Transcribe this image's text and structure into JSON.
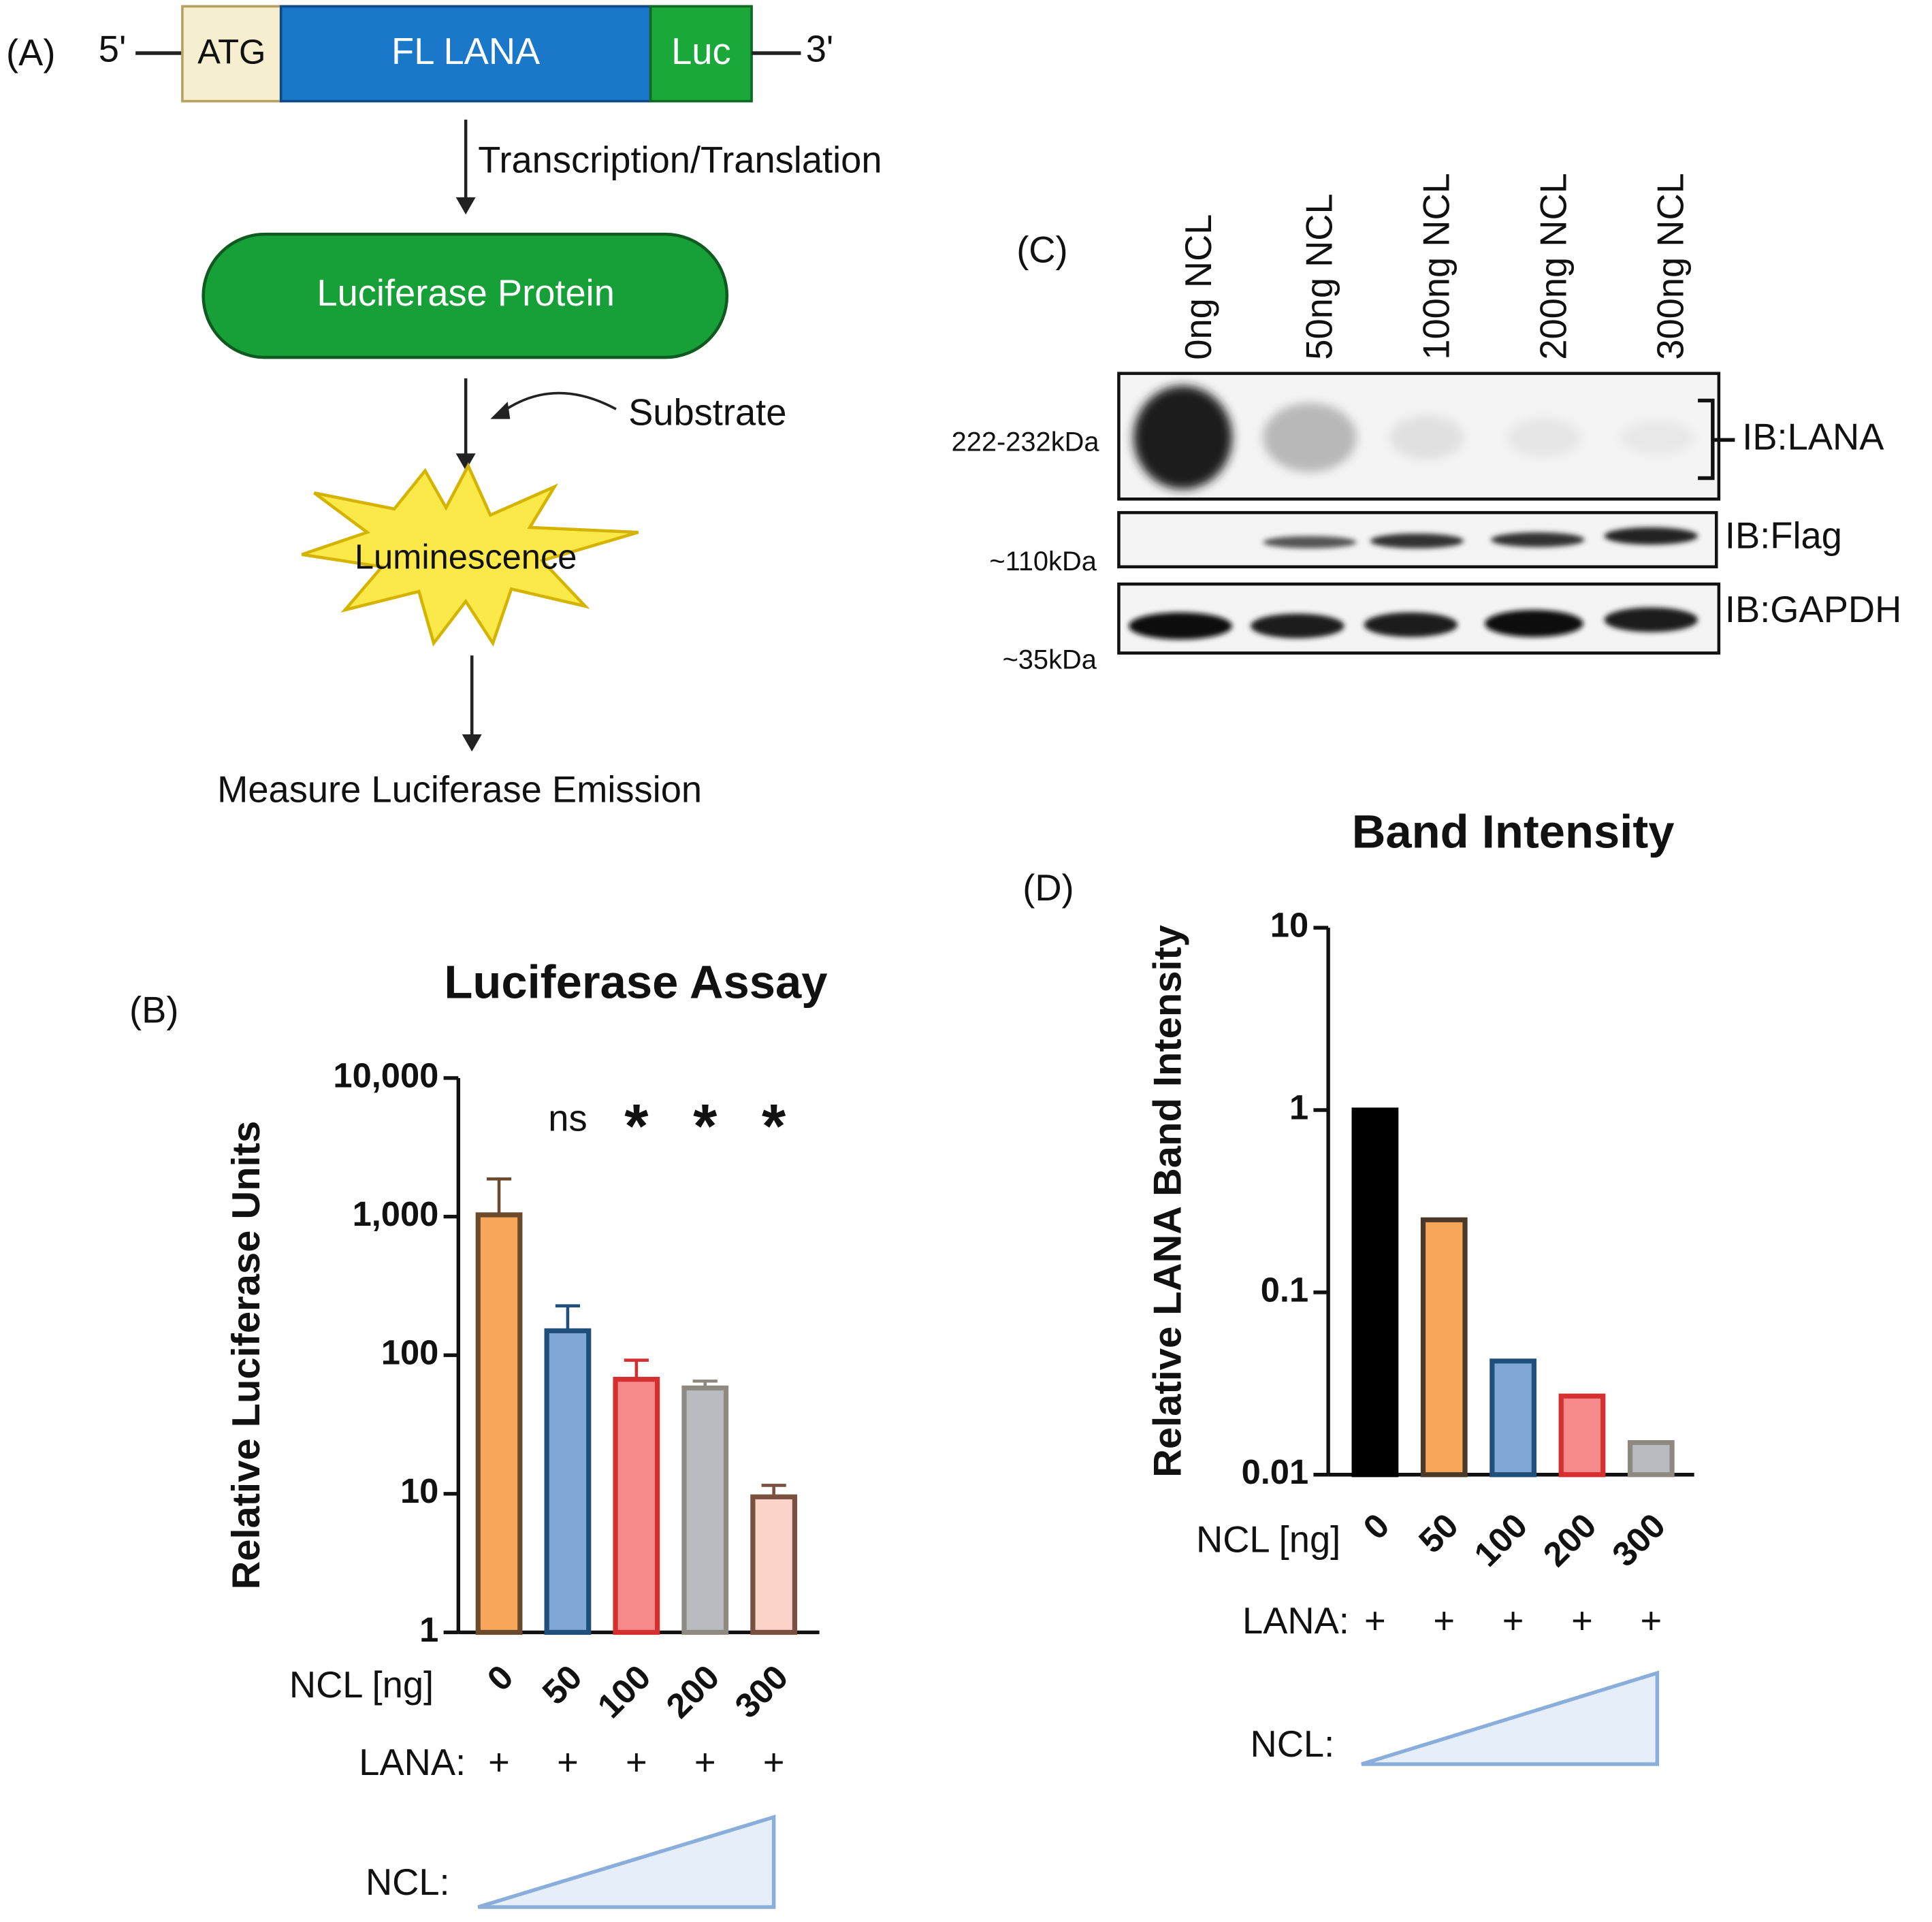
{
  "panel_a": {
    "label": "(A)",
    "five_prime": "5'",
    "three_prime": "3'",
    "gene_segments": [
      "ATG",
      "FL LANA",
      "Luc"
    ],
    "step": "Transcription/Translation",
    "protein": "Luciferase Protein",
    "substrate": "Substrate",
    "signal": "Luminescence",
    "readout": "Measure Luciferase Emission"
  },
  "panel_c": {
    "label": "(C)",
    "lanes": [
      "0ng NCL",
      "50ng NCL",
      "100ng NCL",
      "200ng NCL",
      "300ng NCL"
    ],
    "sizes": [
      "222-232kDa",
      "~110kDa",
      "~35kDa"
    ],
    "antibodies": [
      "IB:LANA",
      "IB:Flag",
      "IB:GAPDH"
    ]
  },
  "chart_data": [
    {
      "type": "bar",
      "panel_label": "(B)",
      "title": "Luciferase Assay",
      "ylabel": "Relative Luciferase Units",
      "xlabel": "NCL [ng]",
      "categories": [
        "0",
        "50",
        "100",
        "200",
        "300"
      ],
      "values": [
        1030,
        150,
        67,
        58,
        9.5
      ],
      "errors": [
        840,
        77,
        25,
        7,
        2
      ],
      "significance": [
        null,
        "ns",
        "*",
        "*",
        "*"
      ],
      "fill_colors": [
        "#f7a65a",
        "#7fa8d6",
        "#f58a8a",
        "#b8bbbf",
        "#fcd3c8"
      ],
      "edge_colors": [
        "#6b4a2e",
        "#1f4f7a",
        "#d43030",
        "#8e8a82",
        "#7a5040"
      ],
      "log_scale": true,
      "ylim": [
        1,
        10000
      ],
      "yticks": [
        1,
        10,
        100,
        {
          "value": 1000,
          "label": "1,000"
        },
        {
          "value": 10000,
          "label": "10,000"
        }
      ],
      "row_label": "LANA:",
      "row_values": [
        "+",
        "+",
        "+",
        "+",
        "+"
      ],
      "gradient_label": "NCL:"
    },
    {
      "type": "bar",
      "panel_label": "(D)",
      "title": "Band Intensity",
      "ylabel": "Relative LANA Band Intensity",
      "xlabel": "NCL [ng]",
      "categories": [
        "0",
        "50",
        "100",
        "200",
        "300"
      ],
      "values": [
        1,
        0.25,
        0.042,
        0.027,
        0.015
      ],
      "fill_colors": [
        "#000000",
        "#f7a65a",
        "#7fa8d6",
        "#f58a8a",
        "#b8bbbf"
      ],
      "edge_colors": [
        "#000000",
        "#4a3a2a",
        "#1f4f7a",
        "#d43030",
        "#8e8a82"
      ],
      "log_scale": true,
      "ylim": [
        0.01,
        10
      ],
      "yticks": [
        0.01,
        0.1,
        1,
        10
      ],
      "row_label": "LANA:",
      "row_values": [
        "+",
        "+",
        "+",
        "+",
        "+"
      ],
      "gradient_label": "NCL:"
    }
  ]
}
